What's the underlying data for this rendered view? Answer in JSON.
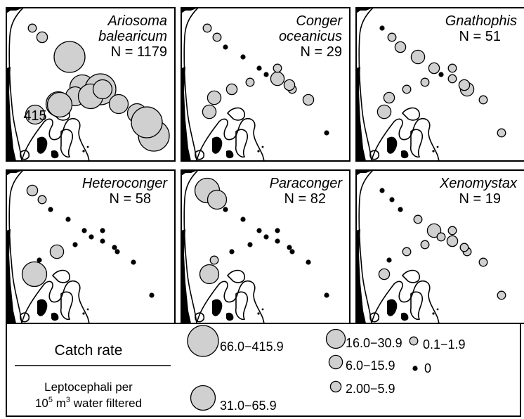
{
  "colors": {
    "circle_fill": "#d0d0d0",
    "zero_dot": "#000000",
    "outline": "#000000"
  },
  "panels": [
    {
      "id": "ariosoma",
      "title_lines": [
        "Ariosoma",
        "balearicum"
      ],
      "n_label": "N = 1179",
      "big_circle_label": "415",
      "stations": [
        {
          "cls": 1
        },
        {
          "cls": 2
        },
        {
          "cls": 6
        },
        {
          "cls": 5
        },
        {
          "cls": 6
        },
        {
          "cls": 4
        },
        {
          "cls": 4
        },
        {
          "cls": 5
        },
        {
          "cls": 6
        },
        {
          "cls": 4
        },
        {
          "cls": 5
        },
        {
          "cls": 4
        },
        {
          "cls": 5
        },
        {
          "cls": 4
        },
        {
          "cls": 5
        },
        {
          "cls": 6
        }
      ]
    },
    {
      "id": "conger",
      "title_lines": [
        "Conger",
        "oceanicus"
      ],
      "n_label": "N = 29",
      "stations": [
        {
          "cls": 1
        },
        {
          "cls": 1
        },
        {
          "cls": 0
        },
        {
          "cls": 0
        },
        {
          "cls": 0
        },
        {
          "cls": 3
        },
        {
          "cls": 1
        },
        {
          "cls": 2
        },
        {
          "cls": 0
        },
        {
          "cls": 3
        },
        {
          "cls": 3
        },
        {
          "cls": 2
        },
        {
          "cls": 1
        },
        {
          "cls": 0
        },
        {
          "cls": 1
        },
        {
          "cls": 2
        }
      ]
    },
    {
      "id": "gnathophis",
      "title_lines": [
        "Gnathophis"
      ],
      "n_label": "N = 51",
      "stations": [
        {
          "cls": 0
        },
        {
          "cls": 1
        },
        {
          "cls": 2
        },
        {
          "cls": 3
        },
        {
          "cls": 2
        },
        {
          "cls": 1
        },
        {
          "cls": 3
        },
        {
          "cls": 1
        },
        {
          "cls": 1
        },
        {
          "cls": 3
        },
        {
          "cls": 2
        },
        {
          "cls": 1
        },
        {
          "cls": 1
        },
        {
          "cls": 0
        },
        {
          "cls": 1
        },
        {
          "cls": 2
        }
      ]
    },
    {
      "id": "heteroconger",
      "title_lines": [
        "Heteroconger"
      ],
      "n_label": "N = 58",
      "stations": [
        {
          "cls": 2
        },
        {
          "cls": 1
        },
        {
          "cls": 0
        },
        {
          "cls": 0
        },
        {
          "cls": 0
        },
        {
          "cls": 0
        },
        {
          "cls": 0
        },
        {
          "cls": 0
        },
        {
          "cls": 0
        },
        {
          "cls": 5
        },
        {
          "cls": 0
        },
        {
          "cls": 3
        },
        {
          "cls": 0
        },
        {
          "cls": 0
        },
        {
          "cls": 0
        },
        {
          "cls": 0
        }
      ]
    },
    {
      "id": "paraconger",
      "title_lines": [
        "Paraconger"
      ],
      "n_label": "N = 82",
      "stations": [
        {
          "cls": 5
        },
        {
          "cls": 4
        },
        {
          "cls": 0
        },
        {
          "cls": 0
        },
        {
          "cls": 0
        },
        {
          "cls": 0
        },
        {
          "cls": 0
        },
        {
          "cls": 0
        },
        {
          "cls": 0
        },
        {
          "cls": 4
        },
        {
          "cls": 1
        },
        {
          "cls": 0
        },
        {
          "cls": 0
        },
        {
          "cls": 0
        },
        {
          "cls": 0
        },
        {
          "cls": 0
        }
      ]
    },
    {
      "id": "xenomystax",
      "title_lines": [
        "Xenomystax"
      ],
      "n_label": "N = 19",
      "stations": [
        {
          "cls": 0
        },
        {
          "cls": 0
        },
        {
          "cls": 0
        },
        {
          "cls": 1
        },
        {
          "cls": 3
        },
        {
          "cls": 2
        },
        {
          "cls": 1
        },
        {
          "cls": 1
        },
        {
          "cls": 1
        },
        {
          "cls": 2
        },
        {
          "cls": 0
        },
        {
          "cls": 1
        },
        {
          "cls": 1
        },
        {
          "cls": 1
        },
        {
          "cls": 1
        },
        {
          "cls": 1
        }
      ]
    }
  ],
  "legend": {
    "title": "Catch rate",
    "subtitle_line1": "Leptocephali per",
    "subtitle_line2_pre": "10",
    "subtitle_line2_sup": "5",
    "subtitle_line2_mid": " m",
    "subtitle_line2_sup2": "3",
    "subtitle_line2_post": " water filtered",
    "classes": [
      {
        "cls": 6,
        "label": "66.0−415.9"
      },
      {
        "cls": 5,
        "label": "31.0−65.9"
      },
      {
        "cls": 4,
        "label": "16.0−30.9"
      },
      {
        "cls": 3,
        "label": "6.0−15.9"
      },
      {
        "cls": 2,
        "label": "2.00−5.9"
      },
      {
        "cls": 1,
        "label": "0.1−1.9"
      },
      {
        "cls": 0,
        "label": "0"
      }
    ]
  }
}
